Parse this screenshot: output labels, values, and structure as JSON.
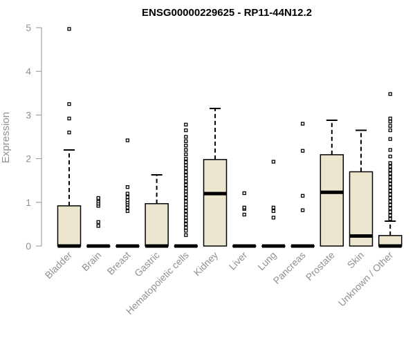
{
  "chart_data": {
    "type": "boxplot",
    "title": "ENSG00000229625 - RP11-44N12.2",
    "xlabel": "",
    "ylabel": "Expression",
    "ylim": [
      0,
      5
    ],
    "yticks": [
      0,
      1,
      2,
      3,
      4,
      5
    ],
    "grid": false,
    "legend": "none",
    "colors": {
      "box_fill": "#ede6ce",
      "box_stroke": "#000000",
      "axis": "#909090",
      "median": "#000000"
    },
    "categories": [
      "Bladder",
      "Brain",
      "Breast",
      "Gastric",
      "Hematopoietic cells",
      "Kidney",
      "Liver",
      "Lung",
      "Pancreas",
      "Prostate",
      "Skin",
      "Unknown / Other"
    ],
    "boxes": [
      {
        "category": "Bladder",
        "min": 0,
        "q1": 0,
        "median": 0,
        "q3": 0.92,
        "max": 2.2,
        "outliers": [
          2.6,
          2.92,
          3.25,
          4.97
        ]
      },
      {
        "category": "Brain",
        "min": 0,
        "q1": 0,
        "median": 0,
        "q3": 0,
        "max": 0,
        "outliers": [
          0.46,
          0.55,
          0.92,
          0.97,
          1.02,
          1.07,
          1.1
        ]
      },
      {
        "category": "Breast",
        "min": 0,
        "q1": 0,
        "median": 0,
        "q3": 0,
        "max": 0,
        "outliers": [
          0.8,
          0.88,
          0.95,
          1.0,
          1.05,
          1.12,
          1.2,
          1.35,
          2.42
        ]
      },
      {
        "category": "Gastric",
        "min": 0,
        "q1": 0,
        "median": 0,
        "q3": 0.97,
        "max": 1.63,
        "outliers": []
      },
      {
        "category": "Hematopoietic cells",
        "min": 0,
        "q1": 0,
        "median": 0,
        "q3": 0,
        "max": 0,
        "outliers": [
          0.25,
          0.35,
          0.42,
          0.5,
          0.58,
          0.65,
          0.72,
          0.8,
          0.88,
          0.95,
          1.02,
          1.1,
          1.18,
          1.25,
          1.32,
          1.4,
          1.48,
          1.55,
          1.62,
          1.7,
          1.78,
          1.85,
          1.92,
          2.0,
          2.1,
          2.2,
          2.3,
          2.4,
          2.5,
          2.65,
          2.78
        ]
      },
      {
        "category": "Kidney",
        "min": 0,
        "q1": 0,
        "median": 1.2,
        "q3": 1.98,
        "max": 3.15,
        "outliers": []
      },
      {
        "category": "Liver",
        "min": 0,
        "q1": 0,
        "median": 0,
        "q3": 0,
        "max": 0,
        "outliers": [
          0.72,
          0.85,
          0.88,
          1.21
        ]
      },
      {
        "category": "Lung",
        "min": 0,
        "q1": 0,
        "median": 0,
        "q3": 0,
        "max": 0,
        "outliers": [
          0.65,
          0.8,
          0.88,
          1.93
        ]
      },
      {
        "category": "Pancreas",
        "min": 0,
        "q1": 0,
        "median": 0,
        "q3": 0,
        "max": 0,
        "outliers": [
          0.82,
          1.15,
          2.18,
          2.8
        ]
      },
      {
        "category": "Prostate",
        "min": 0,
        "q1": 0,
        "median": 1.23,
        "q3": 2.09,
        "max": 2.88,
        "outliers": []
      },
      {
        "category": "Skin",
        "min": 0,
        "q1": 0,
        "median": 0.23,
        "q3": 1.7,
        "max": 2.65,
        "outliers": []
      },
      {
        "category": "Unknown / Other",
        "min": 0,
        "q1": 0,
        "median": 0,
        "q3": 0.24,
        "max": 0.57,
        "outliers": [
          0.62,
          0.7,
          0.78,
          0.86,
          0.94,
          1.02,
          1.1,
          1.18,
          1.26,
          1.34,
          1.42,
          1.5,
          1.58,
          1.66,
          1.74,
          1.82,
          1.9,
          2.05,
          2.2,
          2.45,
          2.65,
          2.75,
          2.85,
          2.92,
          3.48
        ]
      }
    ]
  }
}
